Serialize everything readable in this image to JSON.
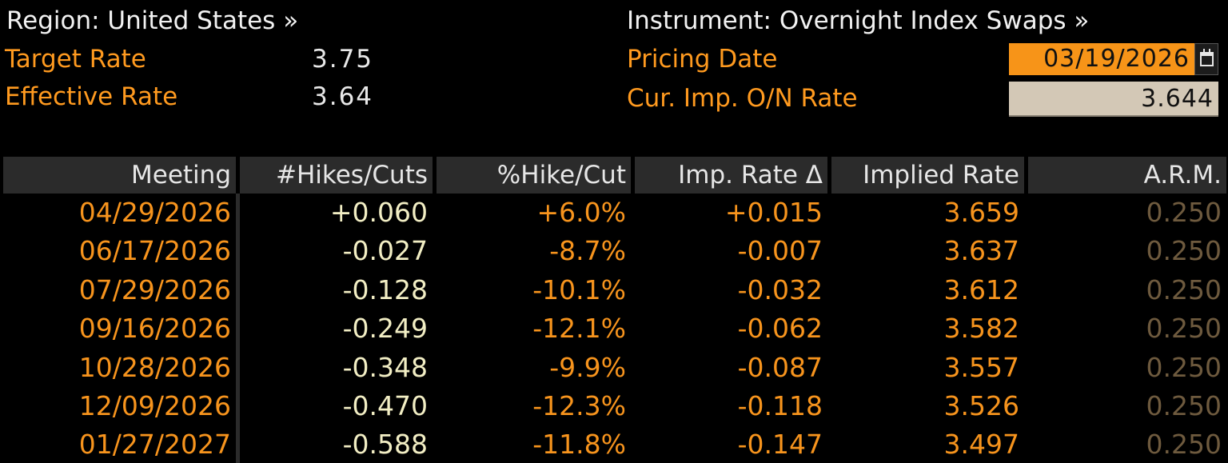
{
  "header": {
    "region_label": "Region: United States »",
    "instrument_label": "Instrument: Overnight Index Swaps »",
    "target_rate_label": "Target Rate",
    "target_rate_value": "3.75",
    "effective_rate_label": "Effective Rate",
    "effective_rate_value": "3.64",
    "pricing_date_label": "Pricing Date",
    "pricing_date_value": "03/19/2026",
    "cur_imp_label": "Cur. Imp. O/N Rate",
    "cur_imp_value": "3.644"
  },
  "icons": {
    "calendar": "calendar-icon"
  },
  "colors": {
    "background": "#000000",
    "label_orange": "#ff9a1f",
    "date_field": "#f79418",
    "rate_field": "#d3c8b6",
    "header_bg": "#2b2b2b",
    "hikes_text": "#f2eec4",
    "arm_text": "#6e5a3e"
  },
  "table": {
    "columns": [
      "Meeting",
      "#Hikes/Cuts",
      "%Hike/Cut",
      "Imp. Rate Δ",
      "Implied Rate",
      "A.R.M."
    ],
    "rows": [
      [
        "04/29/2026",
        "+0.060",
        "+6.0%",
        "+0.015",
        "3.659",
        "0.250"
      ],
      [
        "06/17/2026",
        "-0.027",
        "-8.7%",
        "-0.007",
        "3.637",
        "0.250"
      ],
      [
        "07/29/2026",
        "-0.128",
        "-10.1%",
        "-0.032",
        "3.612",
        "0.250"
      ],
      [
        "09/16/2026",
        "-0.249",
        "-12.1%",
        "-0.062",
        "3.582",
        "0.250"
      ],
      [
        "10/28/2026",
        "-0.348",
        "-9.9%",
        "-0.087",
        "3.557",
        "0.250"
      ],
      [
        "12/09/2026",
        "-0.470",
        "-12.3%",
        "-0.118",
        "3.526",
        "0.250"
      ],
      [
        "01/27/2027",
        "-0.588",
        "-11.8%",
        "-0.147",
        "3.497",
        "0.250"
      ]
    ]
  }
}
